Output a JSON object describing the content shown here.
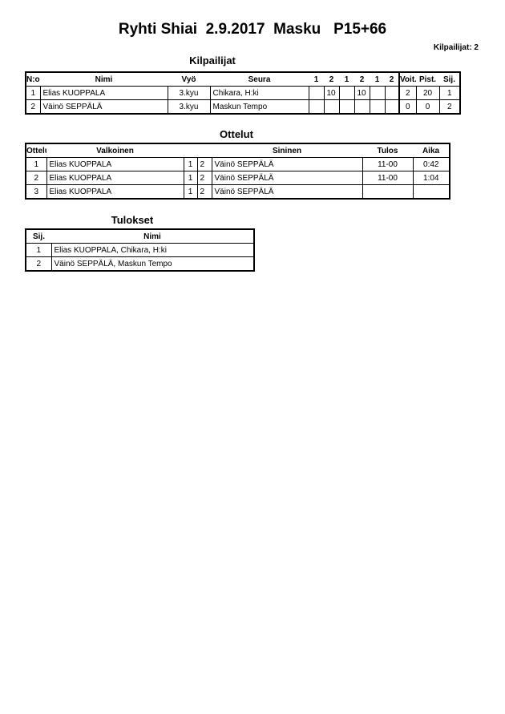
{
  "header": {
    "title": "Ryhti Shiai  2.9.2017  Masku   P15+66",
    "competitor_count": "Kilpailijat: 2"
  },
  "competitors": {
    "title": "Kilpailijat",
    "columns": [
      "N:o",
      "Nimi",
      "Vyö",
      "Seura",
      "1",
      "2",
      "1",
      "2",
      "1",
      "2",
      "Voit.",
      "Pist.",
      "Sij."
    ],
    "rows": [
      {
        "no": "1",
        "name": "Elias KUOPPALA",
        "belt": "3.kyu",
        "club": "Chikara, H:ki",
        "scores": [
          "",
          "10",
          "",
          "10",
          "",
          ""
        ],
        "wins": "2",
        "points": "20",
        "place": "1"
      },
      {
        "no": "2",
        "name": "Väinö SEPPÄLÄ",
        "belt": "3.kyu",
        "club": "Maskun Tempo",
        "scores": [
          "",
          "",
          "",
          "",
          "",
          ""
        ],
        "wins": "0",
        "points": "0",
        "place": "2"
      }
    ]
  },
  "matches": {
    "title": "Ottelut",
    "columns": [
      "Ottelu",
      "Valkoinen",
      "Sininen",
      "Tulos",
      "Aika"
    ],
    "rows": [
      {
        "no": "1",
        "white": "Elias KUOPPALA",
        "w": "1",
        "b": "2",
        "blue": "Väinö SEPPÄLÄ",
        "result": "11-00",
        "time": "0:42"
      },
      {
        "no": "2",
        "white": "Elias KUOPPALA",
        "w": "1",
        "b": "2",
        "blue": "Väinö SEPPÄLÄ",
        "result": "11-00",
        "time": "1:04"
      },
      {
        "no": "3",
        "white": "Elias KUOPPALA",
        "w": "1",
        "b": "2",
        "blue": "Väinö SEPPÄLÄ",
        "result": "",
        "time": ""
      }
    ]
  },
  "results": {
    "title": "Tulokset",
    "columns": [
      "Sij.",
      "Nimi"
    ],
    "rows": [
      {
        "place": "1",
        "name": "Elias KUOPPALA, Chikara, H:ki"
      },
      {
        "place": "2",
        "name": "Väinö SEPPÄLÄ, Maskun Tempo"
      }
    ]
  }
}
